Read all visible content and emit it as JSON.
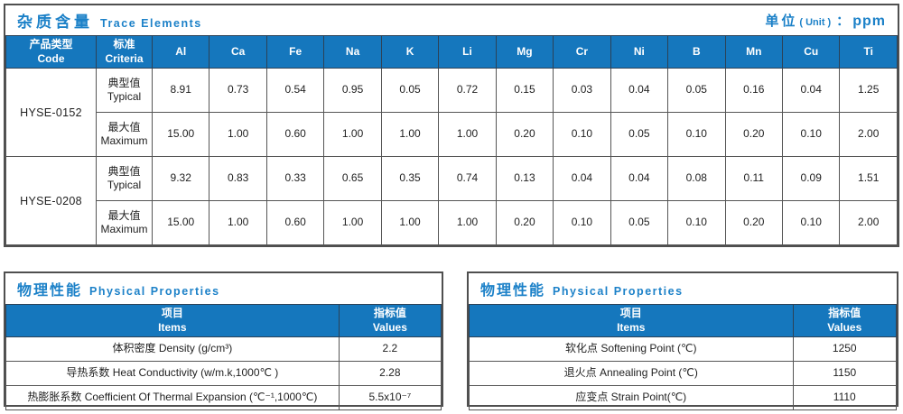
{
  "colors": {
    "accent_header_blue": "#1577bd",
    "title_text_blue": "#1c81c8",
    "border_dark": "#4f4f4f"
  },
  "trace_panel": {
    "title_cn": "杂质含量",
    "title_en": "Trace Elements",
    "unit": {
      "cn": "单位",
      "paren": "( Unit )",
      "colon": "：",
      "value": "ppm"
    },
    "header": {
      "code_cn": "产品类型",
      "code_en": "Code",
      "criteria_cn": "标准",
      "criteria_en": "Criteria"
    },
    "elements": [
      "Al",
      "Ca",
      "Fe",
      "Na",
      "K",
      "Li",
      "Mg",
      "Cr",
      "Ni",
      "B",
      "Mn",
      "Cu",
      "Ti"
    ],
    "criteria_rows": [
      {
        "key": "typical",
        "cn": "典型值",
        "en": "Typical"
      },
      {
        "key": "maximum",
        "cn": "最大值",
        "en": "Maximum"
      }
    ],
    "products": [
      {
        "code": "HYSE-0152",
        "typical": [
          "8.91",
          "0.73",
          "0.54",
          "0.95",
          "0.05",
          "0.72",
          "0.15",
          "0.03",
          "0.04",
          "0.05",
          "0.16",
          "0.04",
          "1.25"
        ],
        "maximum": [
          "15.00",
          "1.00",
          "0.60",
          "1.00",
          "1.00",
          "1.00",
          "0.20",
          "0.10",
          "0.05",
          "0.10",
          "0.20",
          "0.10",
          "2.00"
        ]
      },
      {
        "code": "HYSE-0208",
        "typical": [
          "9.32",
          "0.83",
          "0.33",
          "0.65",
          "0.35",
          "0.74",
          "0.13",
          "0.04",
          "0.04",
          "0.08",
          "0.11",
          "0.09",
          "1.51"
        ],
        "maximum": [
          "15.00",
          "1.00",
          "0.60",
          "1.00",
          "1.00",
          "1.00",
          "0.20",
          "0.10",
          "0.05",
          "0.10",
          "0.20",
          "0.10",
          "2.00"
        ]
      }
    ]
  },
  "physical_left": {
    "title_cn": "物理性能",
    "title_en": "Physical Properties",
    "header": {
      "items_cn": "项目",
      "items_en": "Items",
      "values_cn": "指标值",
      "values_en": "Values"
    },
    "rows": [
      {
        "item": "体积密度 Density (g/cm³)",
        "value": "2.2"
      },
      {
        "item": "导热系数 Heat Conductivity (w/m.k,1000℃ )",
        "value": "2.28"
      },
      {
        "item": "热膨胀系数 Coefficient Of Thermal Expansion (℃⁻¹,1000℃)",
        "value": "5.5x10⁻⁷"
      }
    ]
  },
  "physical_right": {
    "title_cn": "物理性能",
    "title_en": "Physical Properties",
    "header": {
      "items_cn": "项目",
      "items_en": "Items",
      "values_cn": "指标值",
      "values_en": "Values"
    },
    "rows": [
      {
        "item": "软化点 Softening Point (℃)",
        "value": "1250"
      },
      {
        "item": "退火点 Annealing Point (℃)",
        "value": "1150"
      },
      {
        "item": "应变点 Strain Point(℃)",
        "value": "1110"
      }
    ]
  }
}
